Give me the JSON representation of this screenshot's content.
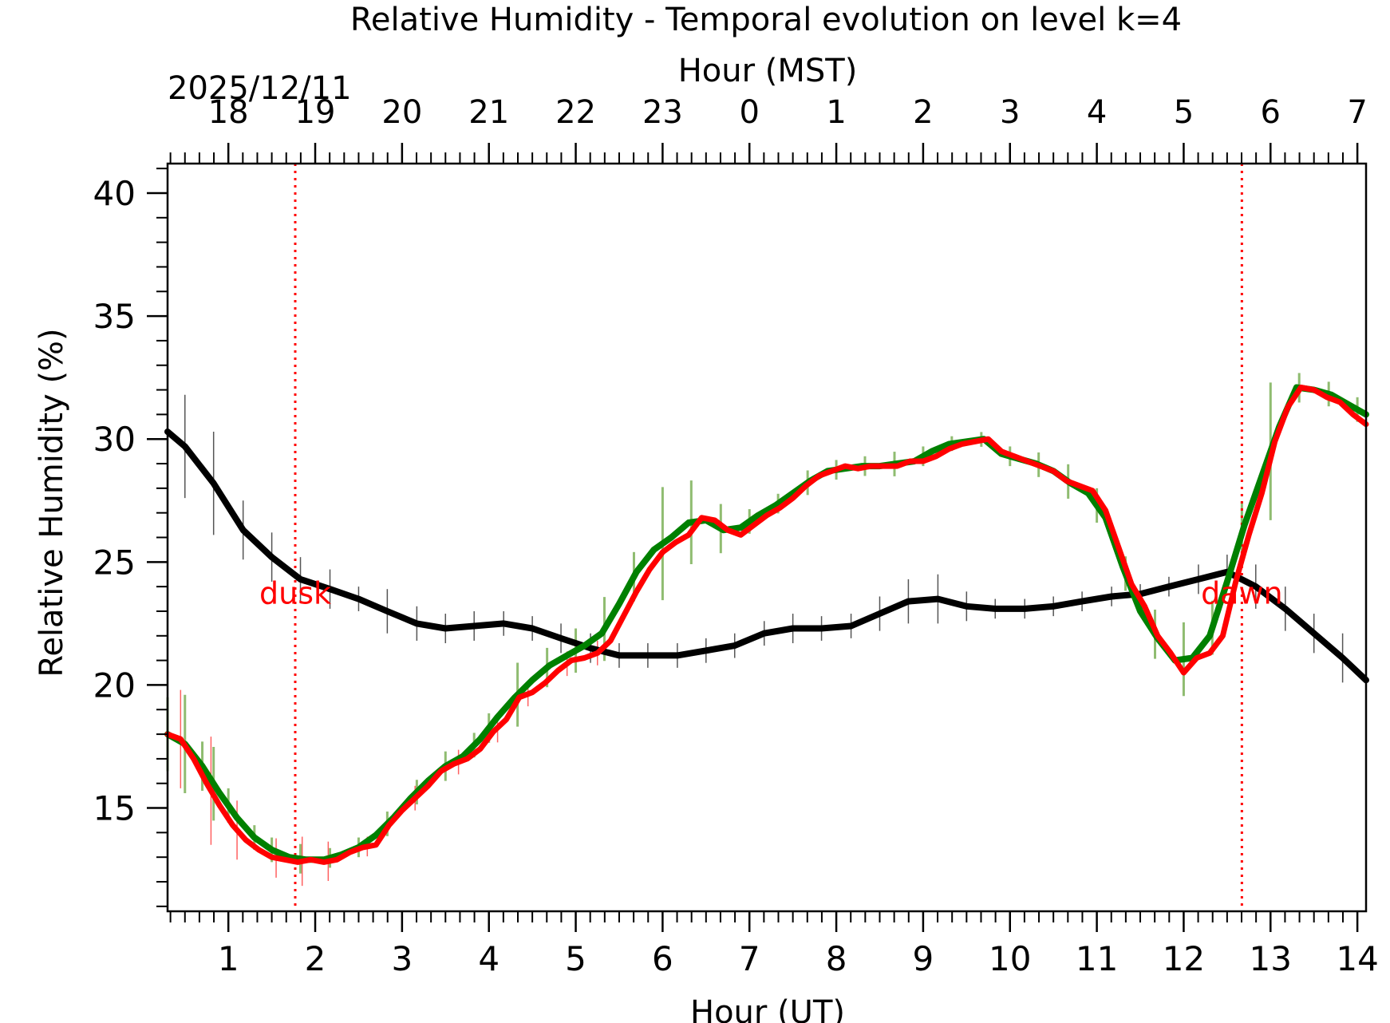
{
  "chart_data": {
    "type": "line",
    "title": "Relative Humidity - Temporal evolution on level k=4",
    "xlabel": "Hour (UT)",
    "ylabel": "Relative Humidity (%)",
    "top_xlabel": "Hour (MST)",
    "date_label": "2025/12/11",
    "xlim": [
      0.3,
      14.1
    ],
    "ylim": [
      10.8,
      41.2
    ],
    "xticks": [
      1,
      2,
      3,
      4,
      5,
      6,
      7,
      8,
      9,
      10,
      11,
      12,
      13,
      14
    ],
    "xtick_labels": [
      "1",
      "2",
      "3",
      "4",
      "5",
      "6",
      "7",
      "8",
      "9",
      "10",
      "11",
      "12",
      "13",
      "14"
    ],
    "yticks": [
      15,
      20,
      25,
      30,
      35,
      40
    ],
    "ytick_labels": [
      "15",
      "20",
      "25",
      "30",
      "35",
      "40"
    ],
    "top_xticks": [
      1,
      2,
      3,
      4,
      5,
      6,
      7,
      8,
      9,
      10,
      11,
      12,
      13,
      14
    ],
    "top_xtick_labels": [
      "18",
      "19",
      "20",
      "21",
      "22",
      "23",
      "0",
      "1",
      "2",
      "3",
      "4",
      "5",
      "6",
      "7"
    ],
    "annotations": [
      {
        "text": "dusk",
        "x": 1.77,
        "y": 23.3,
        "color": "#ff0000"
      },
      {
        "text": "dawn",
        "x": 12.67,
        "y": 23.3,
        "color": "#ff0000"
      }
    ],
    "vlines": [
      {
        "x": 1.77,
        "color": "#ff0000",
        "style": "dotted"
      },
      {
        "x": 12.67,
        "color": "#ff0000",
        "style": "dotted"
      }
    ],
    "series": [
      {
        "name": "black",
        "color": "#000000",
        "x": [
          0.3,
          0.5,
          0.83,
          1.17,
          1.5,
          1.83,
          2.17,
          2.5,
          2.83,
          3.17,
          3.5,
          3.83,
          4.17,
          4.5,
          4.83,
          5.17,
          5.5,
          5.83,
          6.17,
          6.5,
          6.83,
          7.17,
          7.5,
          7.83,
          8.17,
          8.5,
          8.83,
          9.17,
          9.5,
          9.83,
          10.17,
          10.5,
          10.83,
          11.17,
          11.5,
          11.83,
          12.17,
          12.5,
          12.83,
          13.17,
          13.5,
          13.83,
          14.1
        ],
        "values": [
          30.3,
          29.7,
          28.2,
          26.3,
          25.2,
          24.3,
          23.9,
          23.5,
          23.0,
          22.5,
          22.3,
          22.4,
          22.5,
          22.3,
          21.9,
          21.5,
          21.2,
          21.2,
          21.2,
          21.4,
          21.6,
          22.1,
          22.3,
          22.3,
          22.4,
          22.9,
          23.4,
          23.5,
          23.2,
          23.1,
          23.1,
          23.2,
          23.4,
          23.6,
          23.7,
          24.0,
          24.3,
          24.6,
          24.0,
          23.1,
          22.1,
          21.1,
          20.2
        ],
        "error_x": [
          0.5,
          0.83,
          1.17,
          1.5,
          1.83,
          2.17,
          2.5,
          2.83,
          3.17,
          3.5,
          3.83,
          4.17,
          4.5,
          4.83,
          5.17,
          5.5,
          5.83,
          6.17,
          6.5,
          6.83,
          7.17,
          7.5,
          7.83,
          8.17,
          8.5,
          8.83,
          9.17,
          9.5,
          9.83,
          10.17,
          10.5,
          10.83,
          11.17,
          11.5,
          11.83,
          12.17,
          12.5,
          12.83,
          13.17,
          13.5,
          13.83
        ],
        "error_y": [
          2.1,
          2.1,
          1.2,
          1.0,
          0.9,
          0.8,
          0.5,
          0.9,
          0.7,
          0.6,
          0.6,
          0.5,
          0.5,
          0.6,
          0.6,
          0.5,
          0.5,
          0.5,
          0.5,
          0.5,
          0.5,
          0.6,
          0.5,
          0.5,
          0.7,
          0.9,
          1.0,
          0.6,
          0.4,
          0.4,
          0.4,
          0.4,
          0.4,
          0.4,
          0.4,
          0.6,
          0.7,
          0.9,
          0.9,
          0.8,
          1.0
        ]
      },
      {
        "name": "green",
        "color": "#008000",
        "x": [
          0.3,
          0.5,
          0.7,
          0.9,
          1.1,
          1.3,
          1.5,
          1.7,
          1.9,
          2.1,
          2.3,
          2.5,
          2.7,
          2.9,
          3.1,
          3.3,
          3.5,
          3.7,
          3.9,
          4.1,
          4.3,
          4.5,
          4.7,
          4.9,
          5.1,
          5.3,
          5.5,
          5.7,
          5.9,
          6.1,
          6.3,
          6.5,
          6.7,
          6.9,
          7.1,
          7.3,
          7.5,
          7.7,
          7.9,
          8.1,
          8.3,
          8.5,
          8.7,
          8.9,
          9.1,
          9.3,
          9.5,
          9.7,
          9.9,
          10.1,
          10.3,
          10.5,
          10.7,
          10.9,
          11.1,
          11.3,
          11.5,
          11.7,
          11.9,
          12.1,
          12.3,
          12.5,
          12.7,
          12.9,
          13.1,
          13.3,
          13.5,
          13.7,
          13.9,
          14.1
        ],
        "values": [
          18.0,
          17.6,
          16.7,
          15.6,
          14.6,
          13.8,
          13.3,
          13.0,
          12.9,
          12.9,
          13.1,
          13.4,
          13.9,
          14.6,
          15.4,
          16.1,
          16.7,
          17.1,
          17.8,
          18.7,
          19.5,
          20.2,
          20.8,
          21.2,
          21.6,
          22.1,
          23.3,
          24.6,
          25.5,
          26.0,
          26.6,
          26.7,
          26.3,
          26.4,
          26.9,
          27.3,
          27.8,
          28.3,
          28.7,
          28.8,
          28.9,
          28.9,
          29.0,
          29.1,
          29.5,
          29.8,
          29.9,
          30.0,
          29.4,
          29.2,
          29.0,
          28.7,
          28.2,
          27.8,
          26.8,
          24.8,
          23.0,
          21.9,
          21.0,
          21.1,
          22.0,
          24.2,
          26.5,
          28.5,
          30.5,
          32.1,
          32.0,
          31.8,
          31.4,
          31.0
        ],
        "error_x": [
          0.3,
          0.5,
          0.7,
          0.83,
          1.0,
          1.3,
          1.5,
          1.83,
          2.17,
          2.5,
          2.83,
          3.17,
          3.5,
          3.83,
          4.0,
          4.33,
          4.67,
          5.0,
          5.33,
          5.67,
          6.0,
          6.33,
          6.67,
          7.0,
          7.33,
          7.67,
          8.0,
          8.33,
          8.67,
          9.0,
          9.33,
          9.67,
          10.0,
          10.33,
          10.67,
          11.0,
          11.33,
          11.67,
          12.0,
          12.33,
          12.67,
          13.0,
          13.33,
          13.67,
          14.0
        ],
        "error_y": [
          1.5,
          2.0,
          1.0,
          1.5,
          0.7,
          0.5,
          0.5,
          0.6,
          0.4,
          0.4,
          0.5,
          0.5,
          0.6,
          0.5,
          0.6,
          1.3,
          0.8,
          0.9,
          1.3,
          1.0,
          2.3,
          1.7,
          1.0,
          0.5,
          0.4,
          0.5,
          0.4,
          0.4,
          0.5,
          0.4,
          0.3,
          0.3,
          0.4,
          0.5,
          0.7,
          0.7,
          0.7,
          1.0,
          1.5,
          1.1,
          1.3,
          2.8,
          0.6,
          0.5,
          0.5
        ]
      },
      {
        "name": "red",
        "color": "#ff0000",
        "x": [
          0.3,
          0.45,
          0.6,
          0.75,
          0.9,
          1.05,
          1.2,
          1.35,
          1.5,
          1.65,
          1.8,
          1.95,
          2.1,
          2.25,
          2.4,
          2.55,
          2.7,
          2.85,
          3.0,
          3.15,
          3.3,
          3.45,
          3.6,
          3.75,
          3.9,
          4.05,
          4.2,
          4.35,
          4.5,
          4.65,
          4.8,
          4.95,
          5.1,
          5.25,
          5.4,
          5.55,
          5.7,
          5.85,
          6.0,
          6.15,
          6.3,
          6.45,
          6.6,
          6.75,
          6.9,
          7.05,
          7.2,
          7.35,
          7.5,
          7.65,
          7.8,
          7.95,
          8.1,
          8.25,
          8.4,
          8.55,
          8.7,
          8.85,
          9.0,
          9.15,
          9.3,
          9.45,
          9.6,
          9.75,
          9.9,
          10.05,
          10.2,
          10.35,
          10.5,
          10.65,
          10.8,
          10.95,
          11.1,
          11.25,
          11.4,
          11.55,
          11.7,
          11.85,
          12.0,
          12.15,
          12.3,
          12.45,
          12.6,
          12.75,
          12.9,
          13.05,
          13.2,
          13.35,
          13.5,
          13.65,
          13.8,
          13.95,
          14.1
        ],
        "values": [
          18.0,
          17.8,
          17.0,
          16.0,
          15.1,
          14.3,
          13.7,
          13.3,
          13.0,
          12.9,
          12.8,
          12.9,
          12.8,
          12.9,
          13.2,
          13.4,
          13.5,
          14.3,
          14.9,
          15.4,
          15.9,
          16.5,
          16.8,
          17.0,
          17.4,
          18.1,
          18.6,
          19.5,
          19.7,
          20.1,
          20.6,
          21.0,
          21.1,
          21.3,
          21.8,
          22.8,
          23.8,
          24.7,
          25.4,
          25.8,
          26.1,
          26.8,
          26.7,
          26.3,
          26.1,
          26.5,
          26.9,
          27.2,
          27.6,
          28.1,
          28.5,
          28.7,
          28.9,
          28.8,
          28.9,
          28.9,
          28.9,
          29.1,
          29.1,
          29.3,
          29.6,
          29.8,
          29.9,
          30.0,
          29.5,
          29.3,
          29.1,
          28.9,
          28.7,
          28.3,
          28.1,
          27.9,
          27.1,
          25.6,
          24.1,
          23.2,
          22.0,
          21.3,
          20.5,
          21.1,
          21.3,
          22.0,
          24.2,
          26.1,
          27.8,
          29.9,
          31.3,
          32.1,
          32.0,
          31.7,
          31.5,
          31.0,
          30.6
        ],
        "error_x": [
          0.3,
          0.45,
          0.8,
          1.1,
          1.55,
          1.85,
          2.15,
          2.6,
          3.15,
          3.65,
          4.1,
          4.45,
          4.9,
          5.25
        ],
        "error_y": [
          1.8,
          2.0,
          2.2,
          1.2,
          0.8,
          1.0,
          0.8,
          0.4,
          0.5,
          0.5,
          0.6,
          0.5,
          0.5,
          0.5
        ]
      }
    ],
    "green_error_color": "#8fbc70",
    "red_error_color": "#ff6060",
    "black_error_color": "#555555"
  }
}
